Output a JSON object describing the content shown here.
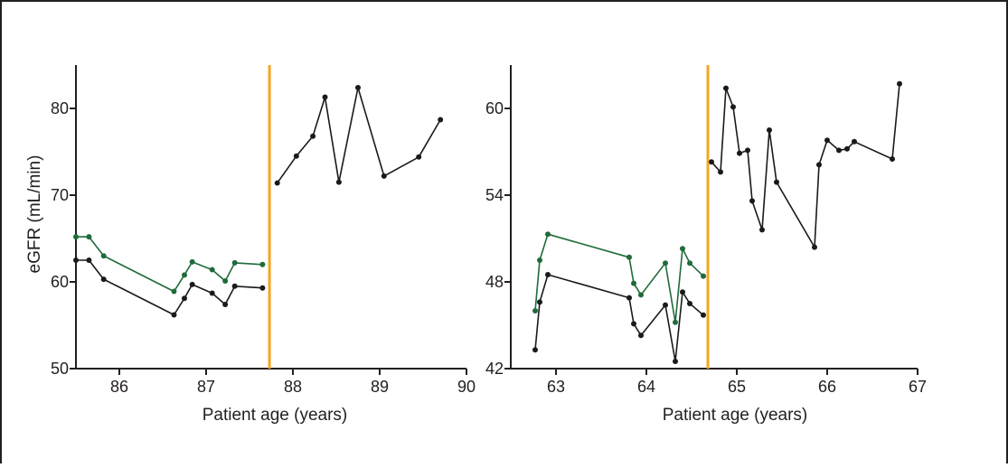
{
  "chart_data": [
    {
      "type": "line",
      "xlabel": "Patient age (years)",
      "ylabel": "eGFR (mL/min)",
      "xlim": [
        85.5,
        90
      ],
      "ylim": [
        50,
        85
      ],
      "xticks": [
        86,
        87,
        88,
        89,
        90
      ],
      "xtick_labels": [
        "86",
        "87",
        "88",
        "89",
        "90"
      ],
      "yticks": [
        50,
        60,
        70,
        80
      ],
      "ytick_labels": [
        "50",
        "60",
        "70",
        "80"
      ],
      "vertical_line_x": 87.73,
      "colors": {
        "green": "#1f6b3a",
        "black": "#1a1a1a",
        "orange": "#f5a623"
      },
      "series": [
        {
          "color": "green",
          "x": [
            85.5,
            85.65,
            85.82,
            86.63,
            86.75,
            86.84,
            87.07,
            87.22,
            87.33,
            87.65
          ],
          "y": [
            65.2,
            65.2,
            63.0,
            58.9,
            60.8,
            62.3,
            61.4,
            60.1,
            62.2,
            62.0
          ]
        },
        {
          "color": "black",
          "x": [
            85.5,
            85.65,
            85.82,
            86.63,
            86.75,
            86.84,
            87.07,
            87.22,
            87.33,
            87.65
          ],
          "y": [
            62.5,
            62.5,
            60.3,
            56.2,
            58.1,
            59.7,
            58.7,
            57.4,
            59.5,
            59.3
          ]
        },
        {
          "color": "black",
          "x": [
            87.82,
            88.04,
            88.23,
            88.37,
            88.53,
            88.75,
            89.05,
            89.45,
            89.7
          ],
          "y": [
            71.4,
            74.5,
            76.8,
            81.3,
            71.5,
            82.4,
            72.2,
            74.4,
            78.7
          ]
        }
      ]
    },
    {
      "type": "line",
      "xlabel": "Patient age (years)",
      "ylabel": "",
      "xlim": [
        62.5,
        67
      ],
      "ylim": [
        42,
        63
      ],
      "xticks": [
        63,
        64,
        65,
        66,
        67
      ],
      "xtick_labels": [
        "63",
        "64",
        "65",
        "66",
        "67"
      ],
      "yticks": [
        42,
        48,
        54,
        60
      ],
      "ytick_labels": [
        "42",
        "48",
        "54",
        "60"
      ],
      "vertical_line_x": 64.68,
      "colors": {
        "green": "#1f6b3a",
        "black": "#1a1a1a",
        "orange": "#f5a623"
      },
      "series": [
        {
          "color": "green",
          "x": [
            62.77,
            62.82,
            62.91,
            63.81,
            63.86,
            63.94,
            64.21,
            64.32,
            64.4,
            64.48,
            64.63
          ],
          "y": [
            46.0,
            49.5,
            51.3,
            49.7,
            47.9,
            47.1,
            49.3,
            45.2,
            50.3,
            49.3,
            48.4
          ]
        },
        {
          "color": "black",
          "x": [
            62.77,
            62.82,
            62.91,
            63.81,
            63.86,
            63.94,
            64.21,
            64.32,
            64.4,
            64.48,
            64.63
          ],
          "y": [
            43.3,
            46.6,
            48.5,
            46.9,
            45.1,
            44.3,
            46.4,
            42.5,
            47.3,
            46.5,
            45.7
          ]
        },
        {
          "color": "black",
          "x": [
            64.72,
            64.82,
            64.88,
            64.96,
            65.03,
            65.12,
            65.17,
            65.28,
            65.36,
            65.44,
            65.86,
            65.91,
            66.0,
            66.13,
            66.22,
            66.3,
            66.72,
            66.8
          ],
          "y": [
            56.3,
            55.6,
            61.4,
            60.1,
            56.9,
            57.1,
            53.6,
            51.6,
            58.5,
            54.9,
            50.4,
            56.1,
            57.8,
            57.1,
            57.2,
            57.7,
            56.5,
            61.7
          ]
        }
      ]
    }
  ]
}
